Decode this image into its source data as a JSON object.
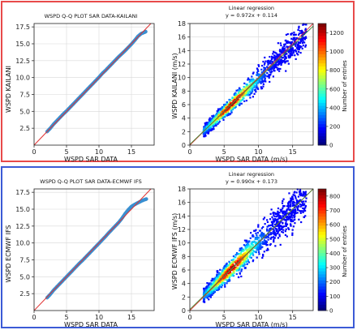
{
  "colors": {
    "top_frame": "#e84a4a",
    "bottom_frame": "#3c5bd6",
    "qq_points": "#3a8fd0",
    "reference_line": "#e03030",
    "regression_line": "#4a8a3a"
  },
  "chart_data": [
    {
      "type": "scatter",
      "title": "WSPD Q-Q PLOT SAR DATA-KAILANI",
      "xlabel": "WSPD SAR DATA",
      "ylabel": "WSPD KAILANI",
      "xlim": [
        0,
        18.5
      ],
      "ylim": [
        0,
        18
      ],
      "xticks": [
        0,
        5,
        10,
        15
      ],
      "yticks": [
        2.5,
        5.0,
        7.5,
        10.0,
        12.5,
        15.0,
        17.5
      ],
      "ytick_labels": [
        "2.5",
        "5.0",
        "7.5",
        "10.0",
        "12.5",
        "15.0",
        "17.5"
      ],
      "grid": true,
      "reference_line": "y = x",
      "points": [
        [
          2.0,
          2.0
        ],
        [
          2.5,
          2.5
        ],
        [
          3.0,
          3.1
        ],
        [
          3.5,
          3.6
        ],
        [
          4.0,
          4.1
        ],
        [
          4.5,
          4.6
        ],
        [
          5.0,
          5.05
        ],
        [
          5.5,
          5.55
        ],
        [
          6.0,
          6.05
        ],
        [
          6.5,
          6.55
        ],
        [
          7.0,
          7.05
        ],
        [
          7.5,
          7.55
        ],
        [
          8.0,
          8.05
        ],
        [
          8.5,
          8.55
        ],
        [
          9.0,
          9.05
        ],
        [
          9.5,
          9.55
        ],
        [
          10.0,
          10.05
        ],
        [
          10.5,
          10.6
        ],
        [
          11.0,
          11.05
        ],
        [
          11.5,
          11.55
        ],
        [
          12.0,
          12.05
        ],
        [
          12.5,
          12.55
        ],
        [
          13.0,
          13.05
        ],
        [
          13.5,
          13.5
        ],
        [
          14.0,
          13.95
        ],
        [
          14.5,
          14.45
        ],
        [
          15.0,
          14.95
        ],
        [
          15.5,
          15.5
        ],
        [
          16.0,
          16.1
        ],
        [
          16.5,
          16.5
        ],
        [
          17.0,
          16.7
        ],
        [
          17.2,
          16.8
        ]
      ]
    },
    {
      "type": "heatmap",
      "title": "Linear regression",
      "subtitle": "y = 0.972x + 0.114",
      "xlabel": "WSPD SAR DATA (m/s)",
      "ylabel": "WSPD KAILANI (m/s)",
      "xlim": [
        0,
        18
      ],
      "ylim": [
        0,
        18
      ],
      "xticks": [
        0,
        5,
        10,
        15
      ],
      "yticks": [
        0,
        2,
        4,
        6,
        8,
        10,
        12,
        14,
        16,
        18
      ],
      "slope": 0.972,
      "intercept": 0.114,
      "x_range": [
        2,
        17
      ],
      "spread": 0.55,
      "peak_x": 6,
      "colorbar_label": "Number of entries",
      "colorbar_range": [
        0,
        1300
      ],
      "colorbar_ticks": [
        0,
        200,
        400,
        600,
        800,
        1000,
        1200
      ],
      "grid": true
    },
    {
      "type": "scatter",
      "title": "WSPD Q-Q PLOT SAR DATA-ECMWF IFS",
      "xlabel": "WSPD SAR DATA",
      "ylabel": "WSPD ECMWF IFS",
      "xlim": [
        0,
        18.5
      ],
      "ylim": [
        0,
        18
      ],
      "xticks": [
        0,
        5,
        10,
        15
      ],
      "yticks": [
        2.5,
        5.0,
        7.5,
        10.0,
        12.5,
        15.0,
        17.5
      ],
      "ytick_labels": [
        "2.5",
        "5.0",
        "7.5",
        "10.0",
        "12.5",
        "15.0",
        "17.5"
      ],
      "grid": true,
      "reference_line": "y = x",
      "points": [
        [
          2.0,
          1.9
        ],
        [
          2.5,
          2.4
        ],
        [
          3.0,
          3.0
        ],
        [
          3.5,
          3.5
        ],
        [
          4.0,
          4.0
        ],
        [
          4.5,
          4.5
        ],
        [
          5.0,
          5.0
        ],
        [
          5.5,
          5.5
        ],
        [
          6.0,
          6.0
        ],
        [
          6.5,
          6.5
        ],
        [
          7.0,
          7.0
        ],
        [
          7.5,
          7.45
        ],
        [
          8.0,
          7.95
        ],
        [
          8.5,
          8.45
        ],
        [
          9.0,
          8.95
        ],
        [
          9.5,
          9.45
        ],
        [
          10.0,
          9.95
        ],
        [
          10.5,
          10.45
        ],
        [
          11.0,
          10.95
        ],
        [
          11.5,
          11.5
        ],
        [
          12.0,
          12.0
        ],
        [
          12.5,
          12.5
        ],
        [
          13.0,
          13.0
        ],
        [
          13.5,
          13.6
        ],
        [
          14.0,
          14.3
        ],
        [
          14.5,
          14.9
        ],
        [
          15.0,
          15.4
        ],
        [
          15.5,
          15.7
        ],
        [
          16.0,
          15.95
        ],
        [
          16.5,
          16.2
        ],
        [
          17.0,
          16.4
        ],
        [
          17.3,
          16.5
        ]
      ]
    },
    {
      "type": "heatmap",
      "title": "Linear regression",
      "subtitle": "y = 0.990x + 0.173",
      "xlabel": "WSPD SAR DATA (m/s)",
      "ylabel": "WSPD ECMWF IFS (m/s)",
      "xlim": [
        0,
        18
      ],
      "ylim": [
        0,
        18
      ],
      "xticks": [
        0,
        5,
        10,
        15
      ],
      "yticks": [
        0,
        2,
        4,
        6,
        8,
        10,
        12,
        14,
        16,
        18
      ],
      "slope": 0.99,
      "intercept": 0.173,
      "x_range": [
        2,
        17
      ],
      "spread": 0.75,
      "peak_x": 6,
      "colorbar_label": "Number of entries",
      "colorbar_range": [
        0,
        850
      ],
      "colorbar_ticks": [
        0,
        100,
        200,
        300,
        400,
        500,
        600,
        700,
        800
      ],
      "grid": true
    }
  ]
}
